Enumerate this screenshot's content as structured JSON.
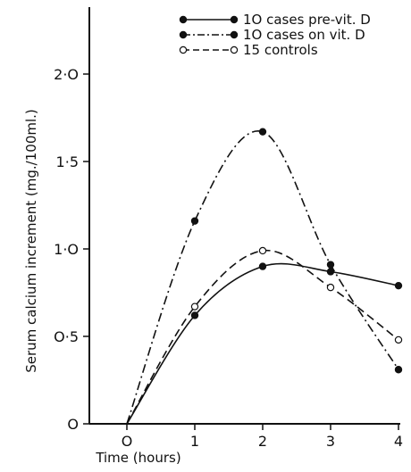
{
  "chart_data": {
    "type": "line",
    "title": "",
    "xlabel": "Time (hours)",
    "ylabel": "Serum calcium increment (mg./100ml.)",
    "xlim": [
      0,
      4
    ],
    "ylim": [
      0,
      2.35
    ],
    "x_ticks": [
      {
        "value": 0,
        "label": "O"
      },
      {
        "value": 1,
        "label": "1"
      },
      {
        "value": 2,
        "label": "2"
      },
      {
        "value": 3,
        "label": "3"
      },
      {
        "value": 4,
        "label": "4"
      }
    ],
    "y_ticks": [
      {
        "value": 0,
        "label": "O"
      },
      {
        "value": 0.5,
        "label": "O·5"
      },
      {
        "value": 1.0,
        "label": "1·O"
      },
      {
        "value": 1.5,
        "label": "1·5"
      },
      {
        "value": 2.0,
        "label": "2·O"
      }
    ],
    "grid": false,
    "legend_position": "top-right",
    "series": [
      {
        "name": "1O cases pre-vit. D",
        "style": "solid",
        "marker": "filled",
        "x": [
          0,
          1,
          2,
          3,
          4
        ],
        "y": [
          0,
          0.62,
          0.9,
          0.87,
          0.79
        ]
      },
      {
        "name": "1O cases on vit. D",
        "style": "dashdot",
        "marker": "filled",
        "x": [
          0,
          1,
          2,
          3,
          4
        ],
        "y": [
          0,
          1.16,
          1.67,
          0.91,
          0.31
        ]
      },
      {
        "name": "15 controls",
        "style": "dashed",
        "marker": "open",
        "x": [
          0,
          1,
          2,
          3,
          4
        ],
        "y": [
          0,
          0.67,
          0.99,
          0.78,
          0.48
        ]
      }
    ]
  }
}
